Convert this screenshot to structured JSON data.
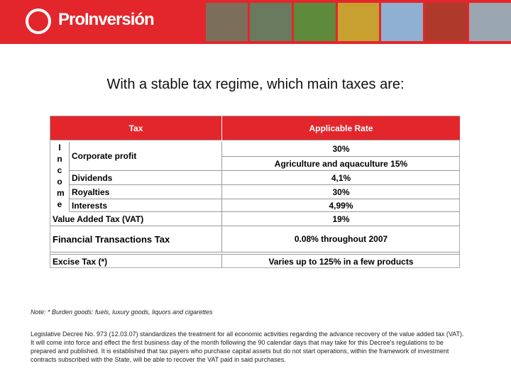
{
  "header": {
    "logo_text": "ProInversión"
  },
  "title": "With a stable tax regime, which main taxes are:",
  "table": {
    "columns": [
      "Tax",
      "Applicable Rate"
    ],
    "income_label": "Income",
    "income_rows": [
      {
        "tax": "Corporate profit",
        "rates": [
          "30%",
          "Agriculture and aquaculture 15%"
        ]
      },
      {
        "tax": "Dividends",
        "rates": [
          "4,1%"
        ]
      },
      {
        "tax": "Royalties",
        "rates": [
          "30%"
        ]
      },
      {
        "tax": "Interests",
        "rates": [
          "4,99%"
        ]
      }
    ],
    "rows": [
      {
        "tax": "Value Added Tax (VAT)",
        "rate": "19%"
      },
      {
        "tax": "Financial Transactions Tax",
        "rate": "0.08% throughout 2007"
      },
      {
        "tax": "Excise Tax (*)",
        "rate": "Varies up to 125% in a few products"
      }
    ]
  },
  "note": "Note: * Burden goods: fuels, luxury goods, liquors and cigarettes",
  "paragraph": "Legislative Decree No. 973 (12.03.07) standardizes the treatment for all economic activities regarding the advance recovery of the value added tax (VAT). It will come into force and effect the first business day of the month following the 90 calendar days that may take for this Decree's regulations to be prepared and published. It is established that tax payers who purchase capital assets but do not start operations, within the framework of investment contracts subscribed with the State, will be able to recover the VAT paid in said purchases."
}
